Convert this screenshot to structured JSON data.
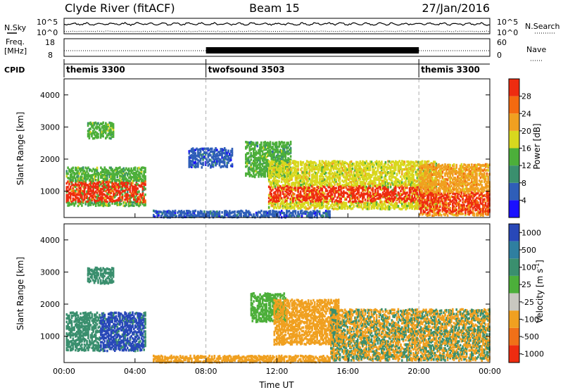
{
  "header": {
    "site": "Clyde River (fitACF)",
    "beam": "Beam 15",
    "date": "27/Jan/2016"
  },
  "labels": {
    "nsky": "N.Sky",
    "freq_top": "Freq.",
    "freq_unit": "[MHz]",
    "cpid": "CPID",
    "nsearch": "N.Search",
    "nave": "Nave",
    "nsky_ticks": [
      "10^5",
      "10^0"
    ],
    "nsearch_ticks": [
      "10^5",
      "10^0"
    ],
    "freq_ticks": [
      "18",
      "8"
    ],
    "nave_ticks": [
      "60",
      "0"
    ]
  },
  "cpid_segments": [
    {
      "name": "themis 3300",
      "start_hour": 0,
      "end_hour": 8
    },
    {
      "name": "twofsound 3503",
      "start_hour": 8,
      "end_hour": 20
    },
    {
      "name": "themis 3300",
      "start_hour": 20,
      "end_hour": 24
    }
  ],
  "time_axis": {
    "label": "Time UT",
    "ticks": [
      "00:00",
      "04:00",
      "08:00",
      "12:00",
      "16:00",
      "20:00",
      "00:00"
    ],
    "tick_hours": [
      0,
      4,
      8,
      12,
      16,
      20,
      24
    ],
    "range_hours": [
      0,
      24
    ]
  },
  "range_axis": {
    "label": "Slant Range [km]",
    "ticks": [
      "1000",
      "2000",
      "3000",
      "4000"
    ],
    "tick_values": [
      1000,
      2000,
      3000,
      4000
    ],
    "range_km": [
      180,
      4500
    ]
  },
  "power_colorbar": {
    "label": "Power [dB]",
    "ticks": [
      "4",
      "8",
      "12",
      "16",
      "20",
      "24",
      "28"
    ],
    "min": 0,
    "max": 32,
    "colors": [
      "#1a10ff",
      "#2f5eb8",
      "#3a8f6e",
      "#4caf3a",
      "#d8d81e",
      "#f0a020",
      "#f46a10",
      "#ee2c10"
    ]
  },
  "velocity_colorbar": {
    "label": "Velocity [m s",
    "label_sup": "-1",
    "label_end": "]",
    "ticks": [
      "1000",
      "500",
      "100",
      "25",
      "-25",
      "-100",
      "-500",
      "-1000"
    ],
    "colors": [
      "#2848b8",
      "#2f7fa0",
      "#3a8f6e",
      "#4caf3a",
      "#c8c8c0",
      "#f0a020",
      "#f07018",
      "#ee2c10"
    ]
  },
  "chart_data": {
    "type": "heatmap",
    "x_unit": "hours UT",
    "y_unit": "km",
    "xlim": [
      0,
      24
    ],
    "ylim": [
      180,
      4500
    ],
    "panels": [
      {
        "name": "Power",
        "scatter_regions": [
          {
            "t0": 0.1,
            "t1": 4.6,
            "r0": 600,
            "r1": 1800,
            "value": "14",
            "core_r0": 700,
            "core_r1": 1350,
            "core_value": "28"
          },
          {
            "t0": 1.3,
            "t1": 2.8,
            "r0": 2700,
            "r1": 3200,
            "value": "14"
          },
          {
            "t0": 7.0,
            "t1": 9.5,
            "r0": 1800,
            "r1": 2400,
            "value": "6"
          },
          {
            "t0": 10.2,
            "t1": 12.8,
            "r0": 1500,
            "r1": 2600,
            "value": "12"
          },
          {
            "t0": 11.5,
            "t1": 21.0,
            "r0": 500,
            "r1": 2000,
            "value": "18",
            "core_r0": 700,
            "core_r1": 1200,
            "core_value": "28"
          },
          {
            "t0": 20.0,
            "t1": 24.0,
            "r0": 300,
            "r1": 1900,
            "value": "22",
            "core_r0": 350,
            "core_r1": 1000,
            "core_value": "28"
          },
          {
            "t0": 5.0,
            "t1": 15.0,
            "r0": 200,
            "r1": 450,
            "value": "6"
          }
        ]
      },
      {
        "name": "Velocity",
        "scatter_regions": [
          {
            "t0": 0.1,
            "t1": 4.6,
            "r0": 600,
            "r1": 1800,
            "value": "100",
            "core_t0": 2.0,
            "core_t1": 4.5,
            "core_value": "1000"
          },
          {
            "t0": 1.3,
            "t1": 2.8,
            "r0": 2700,
            "r1": 3200,
            "value": "100"
          },
          {
            "t0": 10.5,
            "t1": 12.5,
            "r0": 1500,
            "r1": 2400,
            "value": "25"
          },
          {
            "t0": 11.8,
            "t1": 15.5,
            "r0": 800,
            "r1": 2200,
            "value": "-100"
          },
          {
            "t0": 15.0,
            "t1": 24.0,
            "r0": 300,
            "r1": 1900,
            "value": "-100",
            "mix_value": "100"
          },
          {
            "t0": 5.0,
            "t1": 15.0,
            "r0": 200,
            "r1": 450,
            "value": "-100"
          }
        ]
      }
    ]
  }
}
